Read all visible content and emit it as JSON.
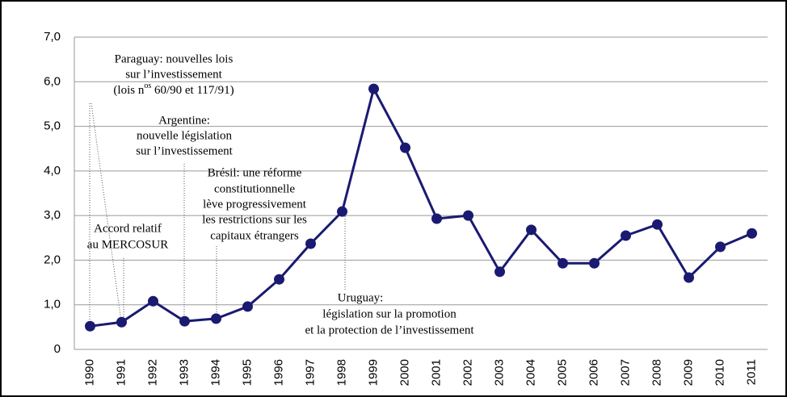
{
  "chart_data": {
    "type": "line",
    "categories": [
      "1990",
      "1991",
      "1992",
      "1993",
      "1994",
      "1995",
      "1996",
      "1997",
      "1998",
      "1999",
      "2000",
      "2001",
      "2002",
      "2003",
      "2004",
      "2005",
      "2006",
      "2007",
      "2008",
      "2009",
      "2010",
      "2011"
    ],
    "series": [
      {
        "color": "#1a1a72",
        "values": [
          0.52,
          0.61,
          1.08,
          0.63,
          0.69,
          0.96,
          1.57,
          2.37,
          3.09,
          5.84,
          4.52,
          2.93,
          3.0,
          1.74,
          2.68,
          1.93,
          1.93,
          2.55,
          2.8,
          1.61,
          2.3,
          2.6
        ]
      }
    ],
    "ylim": [
      0,
      7
    ],
    "yticks": [
      0,
      {
        "value": 1,
        "label": "1,0"
      },
      {
        "value": 2,
        "label": "2,0"
      },
      {
        "value": 3,
        "label": "3,0"
      },
      {
        "value": 4,
        "label": "4,0"
      },
      {
        "value": 5,
        "label": "5,0"
      },
      {
        "value": 6,
        "label": "6,0"
      },
      {
        "value": 7,
        "label": "7,0"
      }
    ],
    "grid": true,
    "annotations": [
      {
        "lines": [
          "Paraguay: nouvelles lois",
          "sur l’investissement",
          [
            "(lois n",
            "os",
            " 60/90 et 117/91)"
          ]
        ]
      },
      {
        "lines": [
          "Argentine:",
          "nouvelle législation",
          "sur l’investissement"
        ]
      },
      {
        "lines": [
          "Brésil: une réforme",
          "constitutionnelle",
          "lève progressivement",
          "les restrictions sur les",
          "capitaux étrangers"
        ]
      },
      {
        "lines": [
          "Accord relatif",
          "au MERCOSUR"
        ]
      },
      {
        "lines": [
          "Uruguay:",
          "législation sur la promotion",
          "et la protection de l’investissement"
        ]
      }
    ]
  }
}
